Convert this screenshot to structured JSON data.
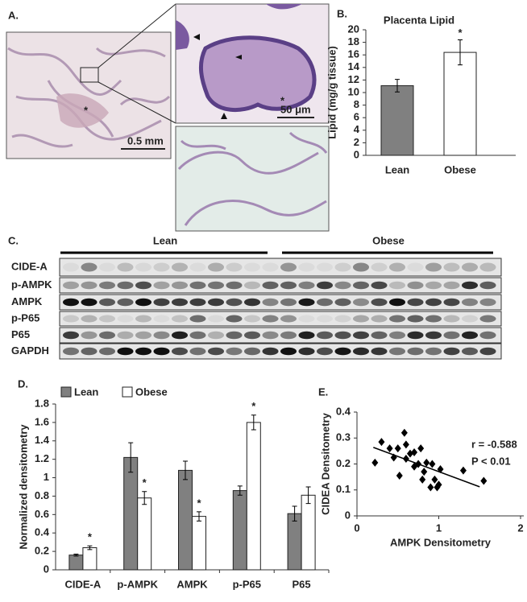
{
  "panel_a": {
    "label": "A.",
    "overview_marker": "*",
    "overview_scale": "0.5 mm",
    "inset_marker": "*",
    "inset_scale": "50 μm"
  },
  "panel_c": {
    "label": "C.",
    "groups": [
      "Lean",
      "Obese"
    ],
    "rows": [
      "CIDE-A",
      "p-AMPK",
      "AMPK",
      "p-P65",
      "P65",
      "GAPDH"
    ]
  },
  "chart_data": [
    {
      "type": "bar",
      "panel_label": "B.",
      "title": "Placenta Lipid",
      "y_label": "Lipid (mg/g tissue)",
      "categories": [
        "Lean",
        "Obese"
      ],
      "values": [
        11.1,
        16.4
      ],
      "errors": [
        1.0,
        2.0
      ],
      "colors": [
        "#808080",
        "#ffffff"
      ],
      "significance": [
        null,
        "*"
      ],
      "ylim": [
        0,
        20
      ],
      "yticks": [
        0,
        2,
        4,
        6,
        8,
        10,
        12,
        14,
        16,
        18,
        20
      ]
    },
    {
      "type": "grouped-bar",
      "panel_label": "D.",
      "y_label": "Normalized densitometry",
      "categories": [
        "CIDE-A",
        "p-AMPK",
        "AMPK",
        "p-P65",
        "P65"
      ],
      "series": [
        {
          "name": "Lean",
          "color": "#808080",
          "values": [
            0.16,
            1.22,
            1.08,
            0.86,
            0.61
          ],
          "errors": [
            0.01,
            0.16,
            0.1,
            0.05,
            0.08
          ],
          "significance": [
            null,
            null,
            null,
            null,
            null
          ]
        },
        {
          "name": "Obese",
          "color": "#ffffff",
          "values": [
            0.24,
            0.78,
            0.58,
            1.6,
            0.81
          ],
          "errors": [
            0.02,
            0.07,
            0.05,
            0.08,
            0.09
          ],
          "significance": [
            "*",
            "*",
            "*",
            "*",
            null
          ]
        }
      ],
      "ylim": [
        0,
        1.8
      ],
      "yticks": [
        0,
        0.2,
        0.4,
        0.6,
        0.8,
        1,
        1.2,
        1.4,
        1.6,
        1.8
      ]
    },
    {
      "type": "scatter",
      "panel_label": "E.",
      "x_label": "AMPK Densitometry",
      "y_label": "CIDEA Densitometry",
      "x": [
        0.22,
        0.3,
        0.4,
        0.45,
        0.5,
        0.52,
        0.58,
        0.6,
        0.6,
        0.65,
        0.7,
        0.7,
        0.75,
        0.78,
        0.8,
        0.82,
        0.85,
        0.9,
        0.92,
        0.95,
        0.98,
        1.0,
        1.02,
        1.3,
        1.55
      ],
      "y": [
        0.205,
        0.285,
        0.26,
        0.225,
        0.26,
        0.155,
        0.32,
        0.275,
        0.22,
        0.24,
        0.245,
        0.19,
        0.2,
        0.26,
        0.14,
        0.17,
        0.205,
        0.11,
        0.2,
        0.14,
        0.11,
        0.12,
        0.18,
        0.175,
        0.135
      ],
      "color": "#000000",
      "trendline": {
        "x": [
          0.2,
          1.5
        ],
        "y": [
          0.264,
          0.112
        ]
      },
      "stats": [
        "r = -0.588",
        "P < 0.01"
      ],
      "xlim": [
        0,
        2
      ],
      "xticks": [
        0,
        1,
        2
      ],
      "ylim": [
        0,
        0.4
      ],
      "yticks": [
        0,
        0.1,
        0.2,
        0.3,
        0.4
      ]
    }
  ]
}
